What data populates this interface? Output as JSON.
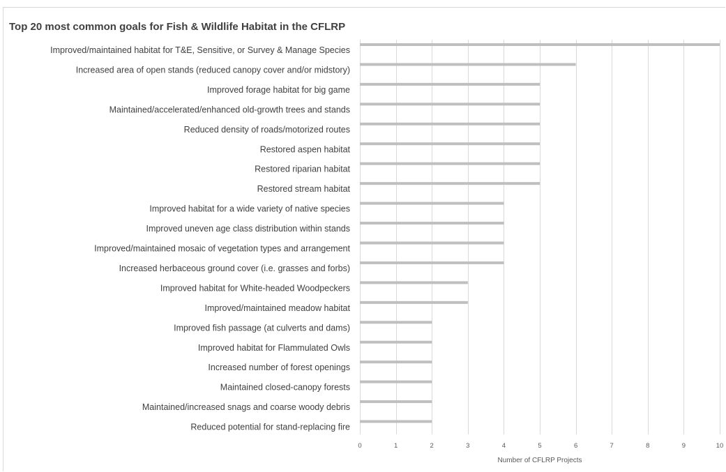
{
  "chart_data": {
    "type": "bar",
    "orientation": "horizontal",
    "title": "Top 20 most common goals for Fish & Wildlife Habitat in the CFLRP",
    "xlabel": "Number of CFLRP Projects",
    "ylabel": "",
    "xlim": [
      0,
      10
    ],
    "x_ticks": [
      "0",
      "1",
      "2",
      "3",
      "4",
      "5",
      "6",
      "7",
      "8",
      "9",
      "10"
    ],
    "grid": true,
    "legend": "none",
    "bar_color": "#bfbfbf",
    "categories": [
      "Improved/maintained habitat for T&E, Sensitive, or Survey & Manage Species",
      "Increased area of open stands (reduced canopy cover and/or midstory)",
      "Improved forage habitat for big game",
      "Maintained/accelerated/enhanced old-growth trees and stands",
      "Reduced density of roads/motorized routes",
      "Restored aspen habitat",
      "Restored riparian habitat",
      "Restored stream habitat",
      "Improved habitat for a wide variety of native species",
      "Improved uneven age class distribution within stands",
      "Improved/maintained mosaic of vegetation types and arrangement",
      "Increased herbaceous ground cover (i.e. grasses and forbs)",
      "Improved habitat for White-headed Woodpeckers",
      "Improved/maintained meadow habitat",
      "Improved fish passage (at culverts and dams)",
      "Improved habitat for Flammulated Owls",
      "Increased number of forest openings",
      "Maintained closed-canopy forests",
      "Maintained/increased snags and coarse woody debris",
      "Reduced potential for stand-replacing fire"
    ],
    "values": [
      10,
      6,
      5,
      5,
      5,
      5,
      5,
      5,
      4,
      4,
      4,
      4,
      3,
      3,
      2,
      2,
      2,
      2,
      2,
      2
    ]
  }
}
